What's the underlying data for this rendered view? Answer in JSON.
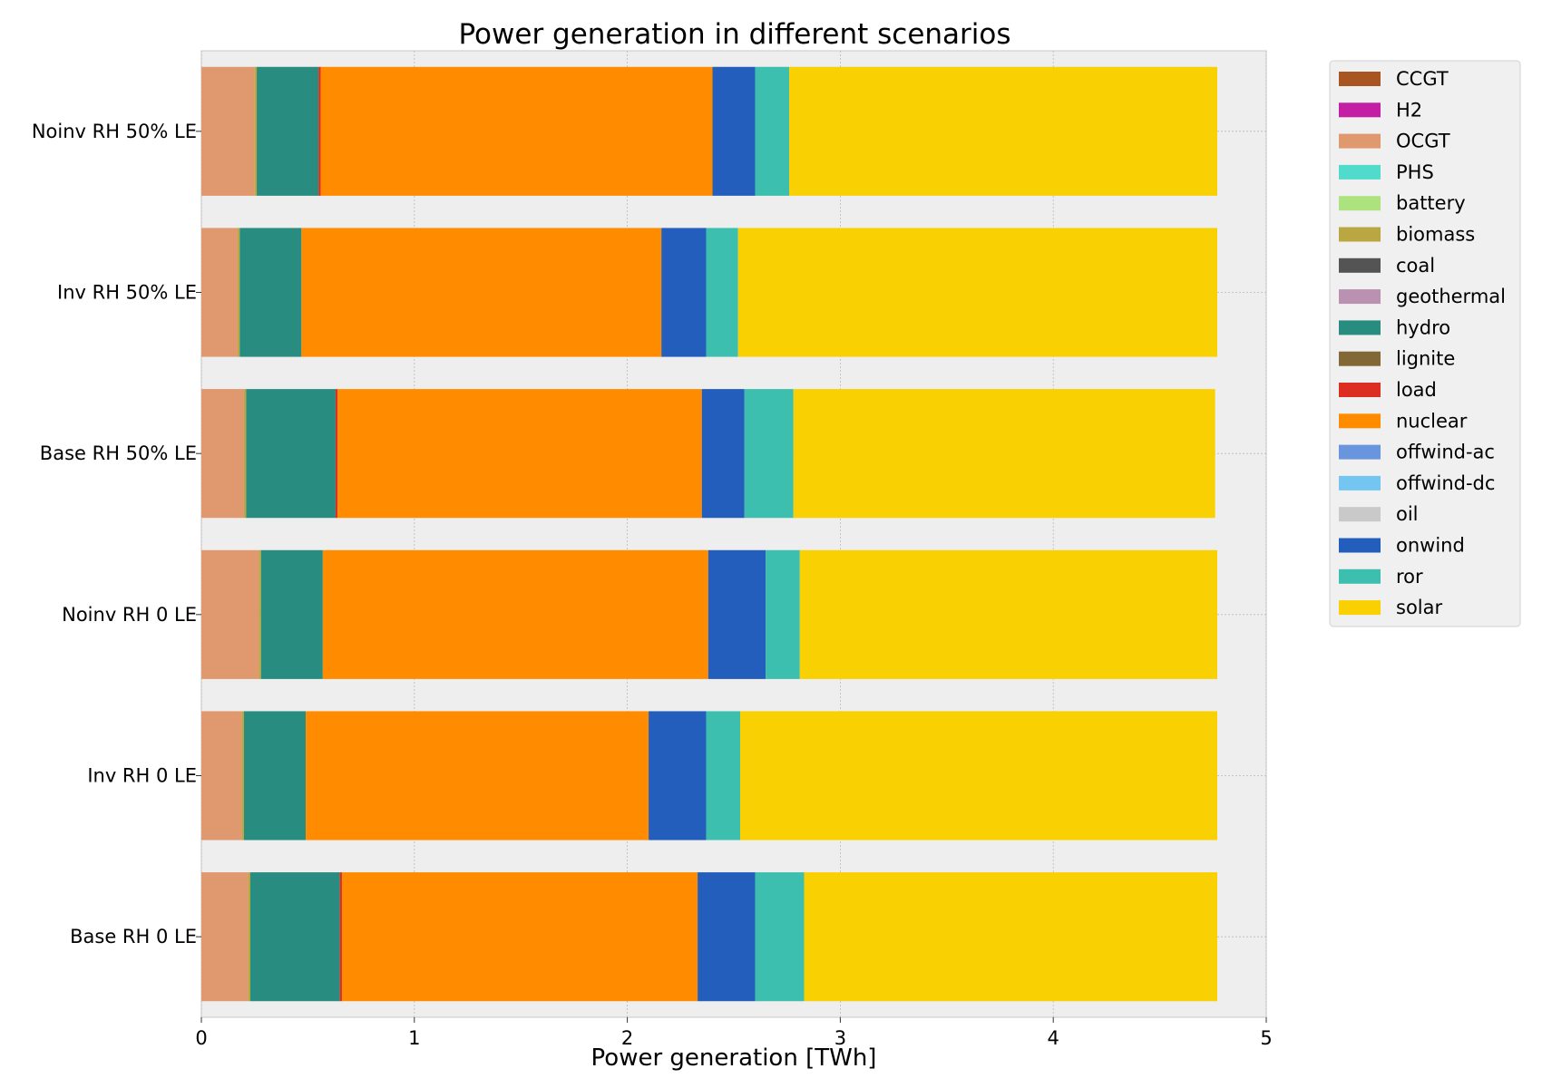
{
  "chart_data": {
    "type": "bar",
    "orientation": "horizontal",
    "stacked": true,
    "title": "Power generation in different scenarios",
    "xlabel": "Power generation [TWh]",
    "ylabel": "",
    "xlim": [
      0,
      5
    ],
    "xticks": [
      0,
      1,
      2,
      3,
      4,
      5
    ],
    "grid": true,
    "legend_position": "outside-right",
    "categories": [
      "Base RH 0 LE",
      "Inv RH 0 LE",
      "Noinv RH 0 LE",
      "Base RH 50% LE",
      "Inv RH 50% LE",
      "Noinv RH 50% LE"
    ],
    "series": [
      {
        "name": "CCGT",
        "color": "#a85522",
        "values": [
          0,
          0,
          0,
          0,
          0,
          0
        ]
      },
      {
        "name": "H2",
        "color": "#c41ea5",
        "values": [
          0,
          0,
          0,
          0,
          0,
          0
        ]
      },
      {
        "name": "OCGT",
        "color": "#e0986e",
        "values": [
          0.22,
          0.19,
          0.27,
          0.2,
          0.17,
          0.25
        ]
      },
      {
        "name": "PHS",
        "color": "#51dbcc",
        "values": [
          0,
          0,
          0,
          0,
          0,
          0
        ]
      },
      {
        "name": "battery",
        "color": "#ace37f",
        "values": [
          0,
          0,
          0,
          0,
          0,
          0
        ]
      },
      {
        "name": "biomass",
        "color": "#baa741",
        "values": [
          0.01,
          0.01,
          0.01,
          0.01,
          0.01,
          0.01
        ]
      },
      {
        "name": "coal",
        "color": "#545454",
        "values": [
          0,
          0,
          0,
          0,
          0,
          0
        ]
      },
      {
        "name": "geothermal",
        "color": "#ba91b1",
        "values": [
          0,
          0,
          0,
          0,
          0,
          0
        ]
      },
      {
        "name": "hydro",
        "color": "#298c81",
        "values": [
          0.42,
          0.29,
          0.29,
          0.42,
          0.29,
          0.29
        ]
      },
      {
        "name": "lignite",
        "color": "#826837",
        "values": [
          0,
          0,
          0,
          0,
          0,
          0
        ]
      },
      {
        "name": "load",
        "color": "#dd2e23",
        "values": [
          0.01,
          0,
          0,
          0.01,
          0,
          0.01
        ]
      },
      {
        "name": "nuclear",
        "color": "#ff8c00",
        "values": [
          1.67,
          1.61,
          1.81,
          1.71,
          1.69,
          1.84
        ]
      },
      {
        "name": "offwind-ac",
        "color": "#6895dd",
        "values": [
          0,
          0,
          0,
          0,
          0,
          0
        ]
      },
      {
        "name": "offwind-dc",
        "color": "#74c6f2",
        "values": [
          0,
          0,
          0,
          0,
          0,
          0
        ]
      },
      {
        "name": "oil",
        "color": "#c9c9c9",
        "values": [
          0,
          0,
          0,
          0,
          0,
          0
        ]
      },
      {
        "name": "onwind",
        "color": "#235ebc",
        "values": [
          0.27,
          0.27,
          0.27,
          0.2,
          0.21,
          0.2
        ]
      },
      {
        "name": "ror",
        "color": "#3dbfb0",
        "values": [
          0.23,
          0.16,
          0.16,
          0.23,
          0.15,
          0.16
        ]
      },
      {
        "name": "solar",
        "color": "#f9d002",
        "values": [
          1.94,
          2.24,
          1.96,
          1.98,
          2.25,
          2.01
        ]
      }
    ]
  }
}
